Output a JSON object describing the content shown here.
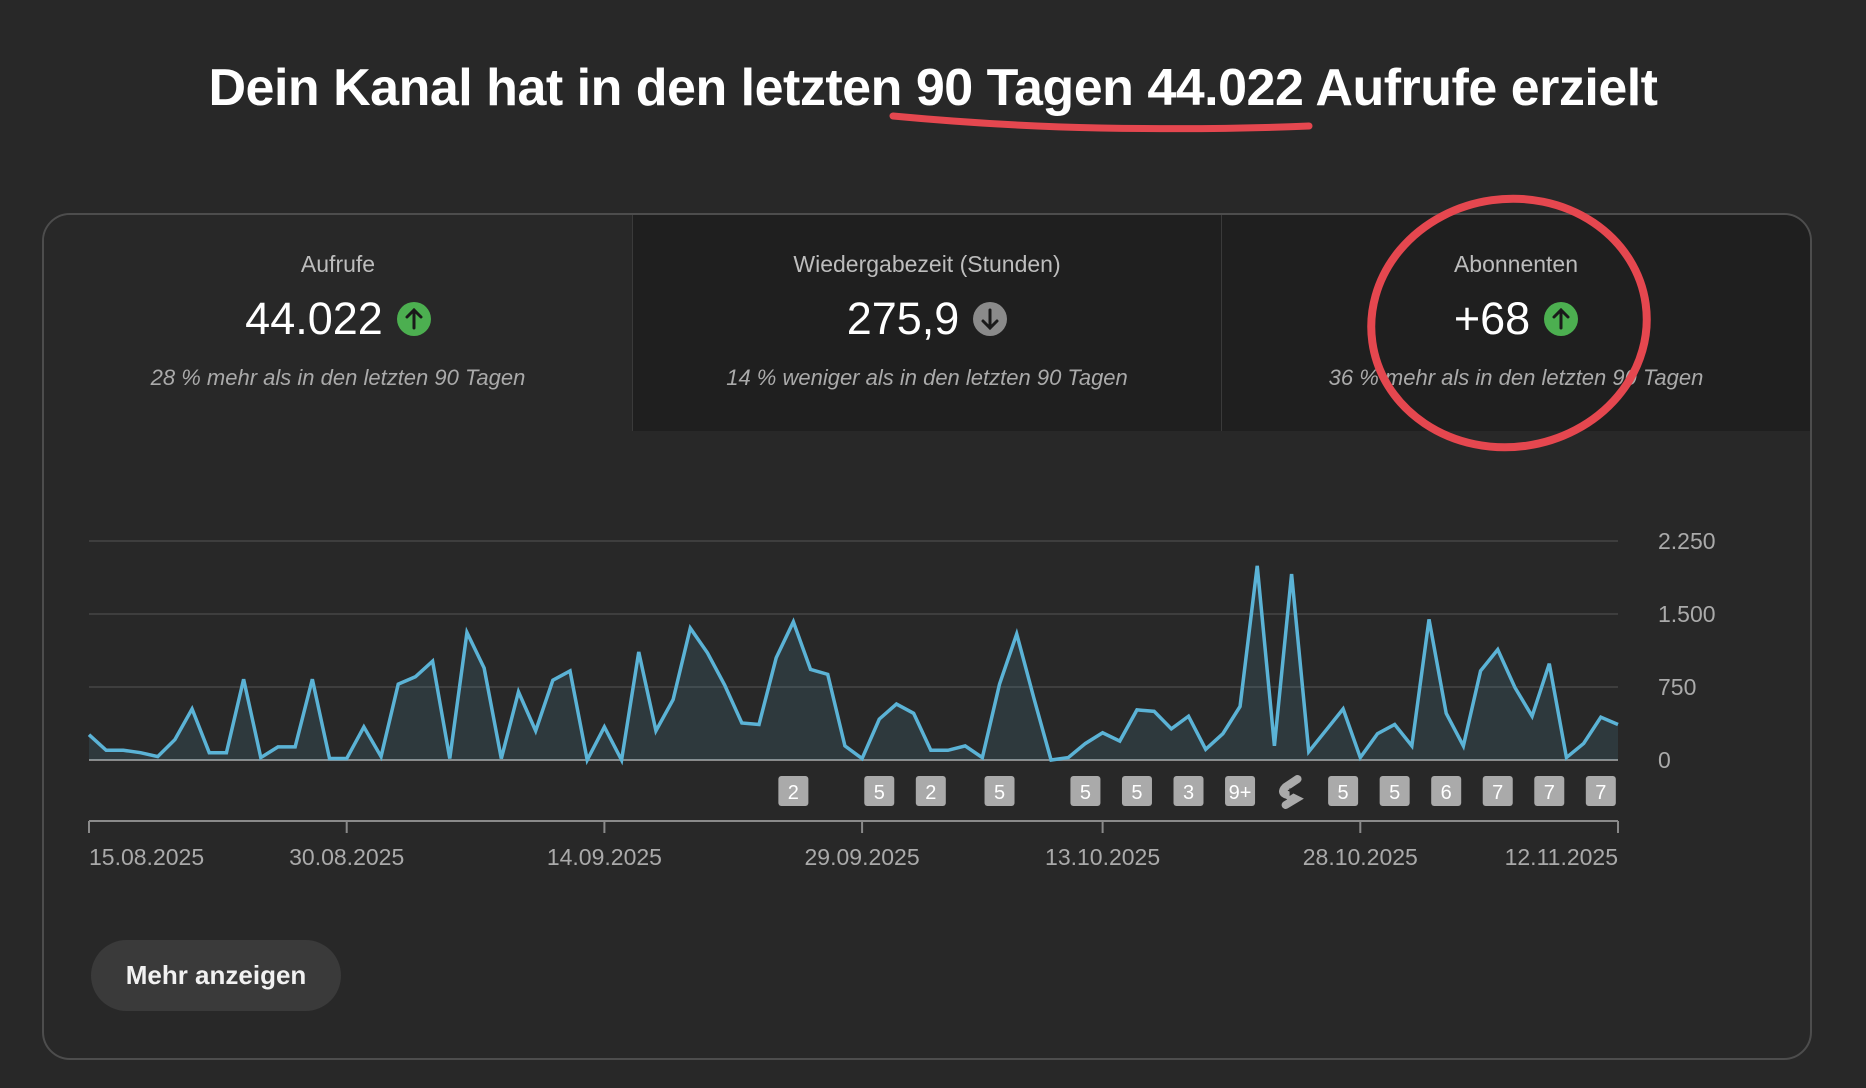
{
  "header": {
    "title_parts": [
      "Dein Kanal hat in den letzten ",
      "90 Tagen 44.022",
      " Aufrufe erzielt"
    ]
  },
  "tabs": [
    {
      "label": "Aufrufe",
      "value": "44.022",
      "trend": "up",
      "trend_icon": "arrow-up-icon",
      "sub": "28 % mehr als in den letzten 90 Tagen",
      "selected": true
    },
    {
      "label": "Wiedergabezeit (Stunden)",
      "value": "275,9",
      "trend": "down",
      "trend_icon": "arrow-down-icon",
      "sub": "14 % weniger als in den letzten 90 Tagen",
      "selected": false
    },
    {
      "label": "Abonnenten",
      "value": "+68",
      "trend": "up",
      "trend_icon": "arrow-up-icon",
      "sub": "36 % mehr als in den letzten 90 Tagen",
      "selected": false
    }
  ],
  "colors": {
    "background": "#282828",
    "line": "#5bb3d6",
    "trend_up": "#4caf50",
    "trend_down": "#8a8a8a",
    "annotation": "#e5474f",
    "marker": "#aaaaaa"
  },
  "more_button": {
    "label": "Mehr anzeigen"
  },
  "chart_data": {
    "type": "area",
    "title": "",
    "xlabel": "",
    "ylabel": "",
    "ylim": [
      0,
      2250
    ],
    "grid": true,
    "y_axis_side": "right",
    "y_ticks": [
      0,
      750,
      1500,
      2250
    ],
    "y_tick_labels": [
      "0",
      "750",
      "1.500",
      "2.250"
    ],
    "x_tick_labels": [
      "15.08.2025",
      "30.08.2025",
      "14.09.2025",
      "29.09.2025",
      "13.10.2025",
      "28.10.2025",
      "12.11.2025"
    ],
    "x": [
      "15.08.2025",
      "16.08.2025",
      "17.08.2025",
      "18.08.2025",
      "19.08.2025",
      "20.08.2025",
      "21.08.2025",
      "22.08.2025",
      "23.08.2025",
      "24.08.2025",
      "25.08.2025",
      "26.08.2025",
      "27.08.2025",
      "28.08.2025",
      "29.08.2025",
      "30.08.2025",
      "31.08.2025",
      "01.09.2025",
      "02.09.2025",
      "03.09.2025",
      "04.09.2025",
      "05.09.2025",
      "06.09.2025",
      "07.09.2025",
      "08.09.2025",
      "09.09.2025",
      "10.09.2025",
      "11.09.2025",
      "12.09.2025",
      "13.09.2025",
      "14.09.2025",
      "15.09.2025",
      "16.09.2025",
      "17.09.2025",
      "18.09.2025",
      "19.09.2025",
      "20.09.2025",
      "21.09.2025",
      "22.09.2025",
      "23.09.2025",
      "24.09.2025",
      "25.09.2025",
      "26.09.2025",
      "27.09.2025",
      "28.09.2025",
      "29.09.2025",
      "30.09.2025",
      "01.10.2025",
      "02.10.2025",
      "03.10.2025",
      "04.10.2025",
      "05.10.2025",
      "06.10.2025",
      "07.10.2025",
      "08.10.2025",
      "09.10.2025",
      "10.10.2025",
      "11.10.2025",
      "12.10.2025",
      "13.10.2025",
      "14.10.2025",
      "15.10.2025",
      "16.10.2025",
      "17.10.2025",
      "18.10.2025",
      "19.10.2025",
      "20.10.2025",
      "21.10.2025",
      "22.10.2025",
      "23.10.2025",
      "24.10.2025",
      "25.10.2025",
      "26.10.2025",
      "27.10.2025",
      "28.10.2025",
      "29.10.2025",
      "30.10.2025",
      "31.10.2025",
      "01.11.2025",
      "02.11.2025",
      "03.11.2025",
      "04.11.2025",
      "05.11.2025",
      "06.11.2025",
      "07.11.2025",
      "08.11.2025",
      "09.11.2025",
      "10.11.2025",
      "11.11.2025",
      "12.11.2025"
    ],
    "series": [
      {
        "values": [
          260,
          100,
          100,
          75,
          35,
          210,
          525,
          75,
          75,
          830,
          25,
          135,
          135,
          830,
          15,
          15,
          340,
          35,
          780,
          855,
          1015,
          15,
          1310,
          945,
          15,
          700,
          300,
          820,
          915,
          0,
          340,
          0,
          1110,
          300,
          620,
          1355,
          1100,
          770,
          380,
          365,
          1050,
          1420,
          930,
          880,
          145,
          15,
          420,
          575,
          480,
          100,
          100,
          145,
          25,
          780,
          1295,
          635,
          0,
          25,
          170,
          280,
          195,
          515,
          500,
          320,
          450,
          110,
          270,
          550,
          1995,
          145,
          1910,
          85,
          305,
          525,
          25,
          270,
          365,
          145,
          1445,
          480,
          145,
          915,
          1135,
          745,
          450,
          990,
          25,
          170,
          440,
          365
        ]
      }
    ],
    "upload_markers": [
      {
        "date": "25.09.2025",
        "label": "2"
      },
      {
        "date": "30.09.2025",
        "label": "5"
      },
      {
        "date": "03.10.2025",
        "label": "2"
      },
      {
        "date": "07.10.2025",
        "label": "5"
      },
      {
        "date": "12.10.2025",
        "label": "5"
      },
      {
        "date": "15.10.2025",
        "label": "5"
      },
      {
        "date": "18.10.2025",
        "label": "3"
      },
      {
        "date": "21.10.2025",
        "label": "9+"
      },
      {
        "date": "24.10.2025",
        "label": "",
        "icon": "shorts-icon"
      },
      {
        "date": "27.10.2025",
        "label": "5"
      },
      {
        "date": "30.10.2025",
        "label": "5"
      },
      {
        "date": "02.11.2025",
        "label": "6"
      },
      {
        "date": "05.11.2025",
        "label": "7"
      },
      {
        "date": "08.11.2025",
        "label": "7"
      },
      {
        "date": "11.11.2025",
        "label": "7"
      }
    ]
  }
}
